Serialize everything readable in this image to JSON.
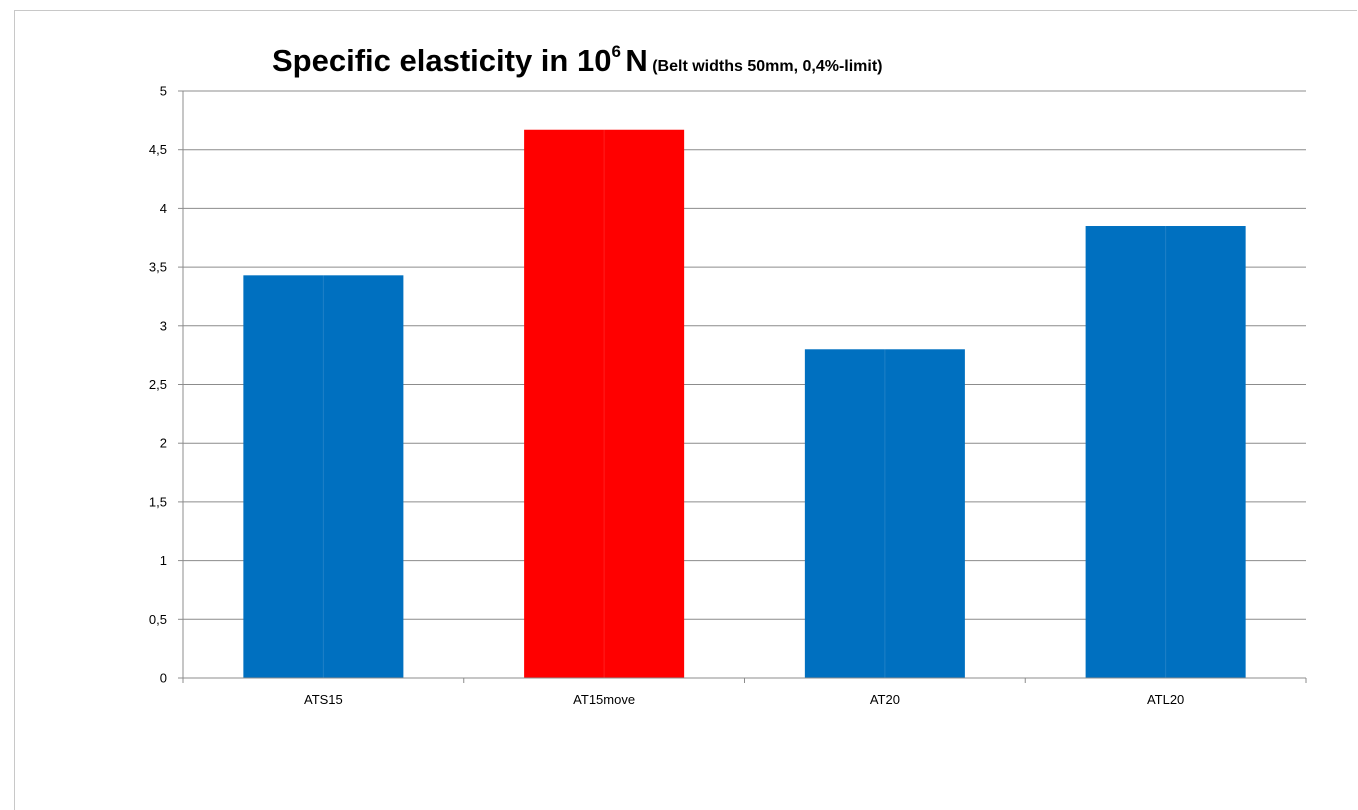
{
  "chart_data": {
    "type": "bar",
    "title": {
      "main": "Specific elasticity in 10",
      "superscript": "6",
      "unit": "N",
      "subtitle": "(Belt widths 50mm, 0,4%-limit)"
    },
    "categories": [
      "ATS15",
      "AT15move",
      "AT20",
      "ATL20"
    ],
    "values": [
      3.43,
      4.67,
      2.8,
      3.85
    ],
    "bar_colors": [
      "#0070c0",
      "#ff0000",
      "#0070c0",
      "#0070c0"
    ],
    "ylim": [
      0,
      5
    ],
    "yticks": [
      "0",
      "0,5",
      "1",
      "1,5",
      "2",
      "2,5",
      "3",
      "3,5",
      "4",
      "4,5",
      "5"
    ],
    "grid": true,
    "legend": "none",
    "xlabel": "",
    "ylabel": ""
  }
}
